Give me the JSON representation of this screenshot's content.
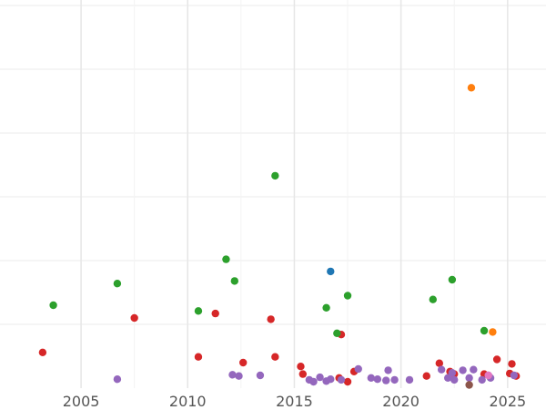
{
  "chart_data": {
    "type": "scatter",
    "title": "",
    "xlabel": "",
    "ylabel": "",
    "xlim": [
      2001.2,
      2026.8
    ],
    "ylim": [
      0,
      6
    ],
    "x_ticks": [
      2005,
      2010,
      2015,
      2020,
      2025
    ],
    "x_tick_labels": [
      "2005",
      "2010",
      "2015",
      "2020",
      "2025"
    ],
    "y_gridlines": [
      1,
      2,
      3,
      4,
      5,
      6
    ],
    "grid": true,
    "legend": "none",
    "y_tick_labels_visible": false,
    "series": [
      {
        "color": "#d62728",
        "points": [
          {
            "x": 2003.2,
            "y": 0.56
          },
          {
            "x": 2007.5,
            "y": 1.1
          },
          {
            "x": 2010.5,
            "y": 0.49
          },
          {
            "x": 2011.3,
            "y": 1.17
          },
          {
            "x": 2012.6,
            "y": 0.4
          },
          {
            "x": 2013.9,
            "y": 1.08
          },
          {
            "x": 2014.1,
            "y": 0.49
          },
          {
            "x": 2015.3,
            "y": 0.34
          },
          {
            "x": 2015.4,
            "y": 0.22
          },
          {
            "x": 2017.1,
            "y": 0.16
          },
          {
            "x": 2017.2,
            "y": 0.84
          },
          {
            "x": 2017.5,
            "y": 0.1
          },
          {
            "x": 2017.8,
            "y": 0.26
          },
          {
            "x": 2021.2,
            "y": 0.19
          },
          {
            "x": 2021.8,
            "y": 0.39
          },
          {
            "x": 2022.3,
            "y": 0.26
          },
          {
            "x": 2022.5,
            "y": 0.22
          },
          {
            "x": 2023.9,
            "y": 0.22
          },
          {
            "x": 2024.5,
            "y": 0.45
          },
          {
            "x": 2025.1,
            "y": 0.23
          },
          {
            "x": 2025.2,
            "y": 0.38
          },
          {
            "x": 2025.4,
            "y": 0.19
          }
        ]
      },
      {
        "color": "#2ca02c",
        "points": [
          {
            "x": 2003.7,
            "y": 1.3
          },
          {
            "x": 2006.7,
            "y": 1.64
          },
          {
            "x": 2010.5,
            "y": 1.21
          },
          {
            "x": 2011.8,
            "y": 2.02
          },
          {
            "x": 2012.2,
            "y": 1.68
          },
          {
            "x": 2014.1,
            "y": 3.33
          },
          {
            "x": 2016.5,
            "y": 1.26
          },
          {
            "x": 2017.0,
            "y": 0.86
          },
          {
            "x": 2017.5,
            "y": 1.45
          },
          {
            "x": 2021.5,
            "y": 1.39
          },
          {
            "x": 2022.4,
            "y": 1.7
          },
          {
            "x": 2023.9,
            "y": 0.9
          }
        ]
      },
      {
        "color": "#9467bd",
        "points": [
          {
            "x": 2006.7,
            "y": 0.14
          },
          {
            "x": 2012.1,
            "y": 0.21
          },
          {
            "x": 2012.4,
            "y": 0.19
          },
          {
            "x": 2013.4,
            "y": 0.2
          },
          {
            "x": 2015.7,
            "y": 0.13
          },
          {
            "x": 2015.9,
            "y": 0.1
          },
          {
            "x": 2016.2,
            "y": 0.17
          },
          {
            "x": 2016.5,
            "y": 0.11
          },
          {
            "x": 2016.7,
            "y": 0.14
          },
          {
            "x": 2017.2,
            "y": 0.13
          },
          {
            "x": 2018.0,
            "y": 0.3
          },
          {
            "x": 2018.6,
            "y": 0.16
          },
          {
            "x": 2018.9,
            "y": 0.14
          },
          {
            "x": 2019.3,
            "y": 0.12
          },
          {
            "x": 2019.4,
            "y": 0.28
          },
          {
            "x": 2019.7,
            "y": 0.13
          },
          {
            "x": 2020.4,
            "y": 0.13
          },
          {
            "x": 2021.9,
            "y": 0.29
          },
          {
            "x": 2022.2,
            "y": 0.16
          },
          {
            "x": 2022.4,
            "y": 0.24
          },
          {
            "x": 2022.5,
            "y": 0.13
          },
          {
            "x": 2022.9,
            "y": 0.28
          },
          {
            "x": 2023.2,
            "y": 0.16
          },
          {
            "x": 2023.4,
            "y": 0.29
          },
          {
            "x": 2023.8,
            "y": 0.13
          },
          {
            "x": 2024.1,
            "y": 0.2
          },
          {
            "x": 2024.2,
            "y": 0.16
          },
          {
            "x": 2025.3,
            "y": 0.2
          }
        ]
      },
      {
        "color": "#1f77b4",
        "points": [
          {
            "x": 2016.7,
            "y": 1.83
          }
        ]
      },
      {
        "color": "#ff7f0e",
        "points": [
          {
            "x": 2023.3,
            "y": 4.71
          },
          {
            "x": 2024.3,
            "y": 0.88
          }
        ]
      },
      {
        "color": "#8c564b",
        "points": [
          {
            "x": 2023.2,
            "y": 0.05
          }
        ]
      },
      {
        "color": "#e377c2",
        "points": [
          {
            "x": 2024.1,
            "y": 0.2
          }
        ]
      }
    ]
  }
}
